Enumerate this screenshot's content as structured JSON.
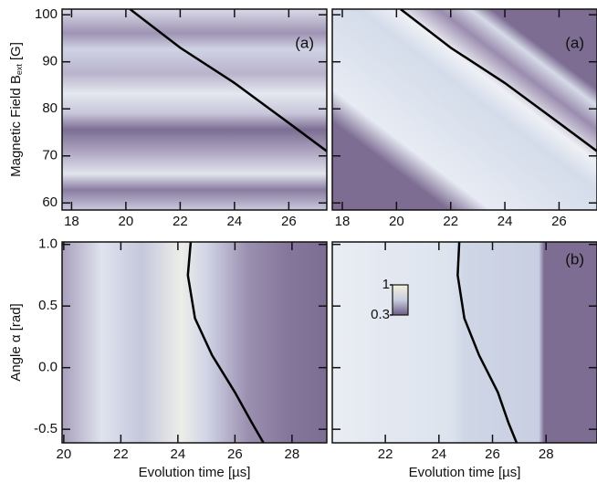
{
  "chart_data": [
    {
      "type": "line",
      "panel_label": "(a)",
      "ylabel": "Magnetic Field B",
      "ylabel_sub": "ext",
      "ylabel_unit": "[G]",
      "xlim": [
        17.65,
        27.4
      ],
      "ylim": [
        58.5,
        101.2
      ],
      "xticks": [
        18,
        20,
        22,
        24,
        26
      ],
      "yticks": [
        60,
        70,
        80,
        90,
        100
      ],
      "show_yticklabels": true,
      "series": [
        {
          "color": "#000000",
          "x": [
            20.15,
            22,
            24,
            26,
            27.4
          ],
          "values": [
            101.2,
            93,
            85.5,
            77,
            71
          ]
        }
      ]
    },
    {
      "type": "line",
      "panel_label": "(a)",
      "xlim": [
        17.63,
        27.4
      ],
      "ylim": [
        58.5,
        101.2
      ],
      "xticks": [
        18,
        20,
        22,
        24,
        26
      ],
      "yticks": [
        60,
        70,
        80,
        90,
        100
      ],
      "show_yticklabels": false,
      "series": [
        {
          "color": "#000000",
          "x": [
            20.15,
            22,
            24,
            26,
            27.4
          ],
          "values": [
            101.2,
            93,
            85.5,
            77,
            71
          ]
        }
      ]
    },
    {
      "type": "line",
      "ylabel": "Angle α [rad]",
      "xlabel": "Evolution time [µs]",
      "xlim": [
        19.94,
        29.22
      ],
      "ylim": [
        -0.61,
        1.02
      ],
      "xticks": [
        20,
        22,
        24,
        26,
        28
      ],
      "yticks": [
        {
          "value": 1,
          "label": "1.0"
        },
        0.5,
        {
          "value": 0,
          "label": "0.0"
        },
        -0.5
      ],
      "show_yticklabels": true,
      "series": [
        {
          "color": "#000000",
          "x": [
            24.45,
            24.35,
            24.6,
            25.2,
            26.0,
            26.6,
            27.0
          ],
          "values": [
            1.02,
            0.75,
            0.4,
            0.1,
            -0.2,
            -0.45,
            -0.61
          ]
        }
      ]
    },
    {
      "type": "line",
      "panel_label": "(b)",
      "xlabel": "Evolution time [µs]",
      "xlim": [
        20.02,
        29.9
      ],
      "ylim": [
        -0.61,
        1.02
      ],
      "xticks": [
        22,
        24,
        26,
        28
      ],
      "yticks": [
        {
          "value": 1,
          "label": "1.0"
        },
        0.5,
        {
          "value": 0,
          "label": "0.0"
        },
        -0.5
      ],
      "show_yticklabels": false,
      "colorbar": {
        "range": [
          0.3,
          1
        ],
        "ticks": [
          1,
          0.3
        ]
      },
      "series": [
        {
          "color": "#000000",
          "x": [
            24.76,
            24.7,
            24.95,
            25.5,
            26.2,
            26.6,
            26.9
          ],
          "values": [
            1.02,
            0.75,
            0.4,
            0.1,
            -0.2,
            -0.45,
            -0.61
          ]
        }
      ]
    }
  ]
}
